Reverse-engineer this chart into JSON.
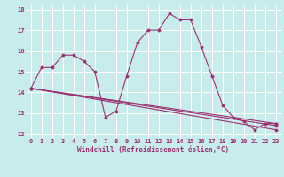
{
  "title": "",
  "xlabel": "Windchill (Refroidissement éolien,°C)",
  "ylabel": "",
  "bg_color": "#c8ecec",
  "grid_color": "#ffffff",
  "line_color": "#9b3070",
  "xlim": [
    -0.5,
    23.5
  ],
  "ylim": [
    11.8,
    18.2
  ],
  "yticks": [
    12,
    13,
    14,
    15,
    16,
    17,
    18
  ],
  "xticks": [
    0,
    1,
    2,
    3,
    4,
    5,
    6,
    7,
    8,
    9,
    10,
    11,
    12,
    13,
    14,
    15,
    16,
    17,
    18,
    19,
    20,
    21,
    22,
    23
  ],
  "series1_x": [
    0,
    1,
    2,
    3,
    4,
    5,
    6,
    7,
    8,
    9,
    10,
    11,
    12,
    13,
    14,
    15,
    16,
    17,
    18,
    19,
    20,
    21,
    22,
    23
  ],
  "series1_y": [
    14.2,
    15.2,
    15.2,
    15.8,
    15.8,
    15.5,
    15.0,
    12.8,
    13.1,
    14.8,
    16.4,
    17.0,
    17.0,
    17.8,
    17.5,
    17.5,
    16.2,
    14.8,
    13.4,
    12.8,
    12.6,
    12.2,
    12.5,
    12.5
  ],
  "series2_x": [
    0,
    23
  ],
  "series2_y": [
    14.2,
    12.5
  ],
  "series3_x": [
    0,
    23
  ],
  "series3_y": [
    14.2,
    12.2
  ],
  "series4_x": [
    0,
    23
  ],
  "series4_y": [
    14.2,
    12.4
  ]
}
